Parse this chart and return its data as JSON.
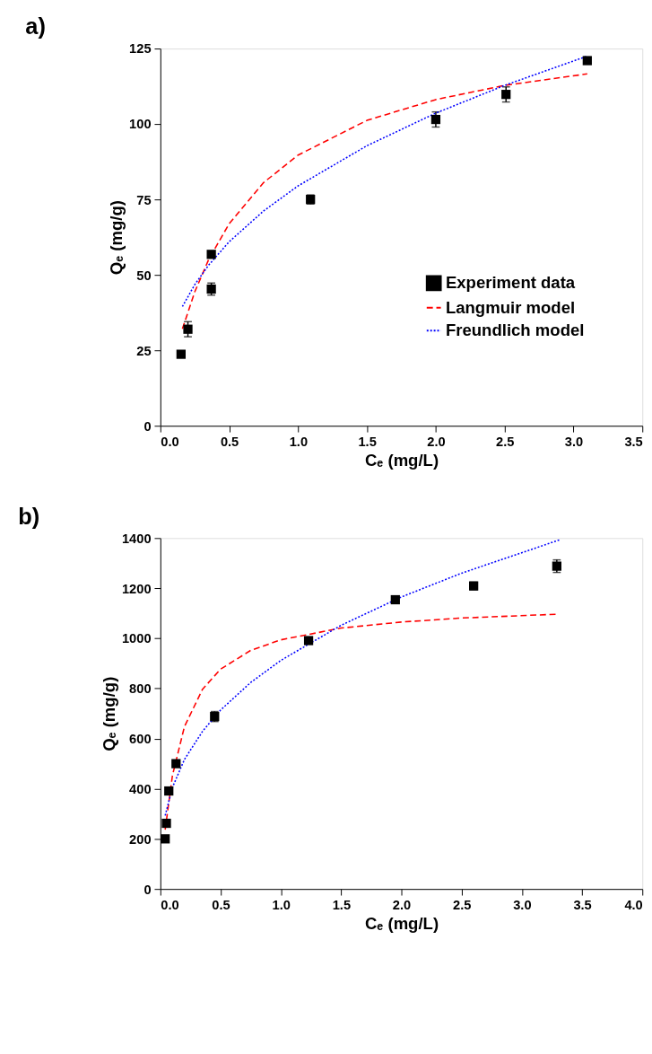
{
  "chart_data": [
    {
      "type": "scatter",
      "title": "a)",
      "xlabel": "Cₑ (mg/L)",
      "ylabel": "Qₑ (mg/g)",
      "x": [
        0.15,
        0.2,
        0.37,
        0.37,
        1.09,
        2.0,
        2.51,
        3.1
      ],
      "series": [
        {
          "name": "Experiment data",
          "color": "#000000",
          "marker": "square",
          "values": [
            23.7,
            32,
            45.3,
            56.8,
            75,
            101.5,
            109.8,
            121
          ],
          "errors": [
            1,
            2.5,
            2,
            1,
            1.5,
            2.5,
            2.5,
            1
          ]
        },
        {
          "name": "Langmuir model",
          "type": "line",
          "color": "#ff0000",
          "line_style": "dashed",
          "x": [
            0.16,
            0.25,
            0.35,
            0.5,
            0.75,
            1.0,
            1.5,
            2.0,
            2.5,
            3.1
          ],
          "values": [
            32.1,
            44.4,
            55.0,
            67.0,
            80.6,
            89.7,
            101.2,
            108.1,
            112.8,
            116.6
          ]
        },
        {
          "name": "Freundlich model",
          "type": "line",
          "color": "#0000ff",
          "line_style": "dotted",
          "x": [
            0.16,
            0.25,
            0.35,
            0.5,
            0.75,
            1.0,
            1.5,
            2.0,
            2.5,
            3.1
          ],
          "values": [
            39.5,
            46.8,
            53.2,
            61.0,
            71.2,
            79.5,
            92.8,
            103.6,
            112.8,
            122.5
          ]
        }
      ],
      "xlim": [
        0,
        3.5
      ],
      "ylim": [
        0,
        125
      ],
      "xticks": [
        {
          "value": 0,
          "label": "0.0"
        },
        {
          "value": 0.5,
          "label": "0.5"
        },
        {
          "value": 1,
          "label": "1.0"
        },
        {
          "value": 1.5,
          "label": "1.5"
        },
        {
          "value": 2,
          "label": "2.0"
        },
        {
          "value": 2.5,
          "label": "2.5"
        },
        {
          "value": 3,
          "label": "3.0"
        },
        {
          "value": 3.5,
          "label": "3.5"
        }
      ],
      "yticks": [
        0,
        25,
        50,
        75,
        100,
        125
      ],
      "grid": false,
      "legend": "bottom right"
    },
    {
      "type": "scatter",
      "title": "b)",
      "xlabel": "Cₑ (mg/L)",
      "ylabel": "Qₑ (mg/g)",
      "x": [
        0.04,
        0.05,
        0.07,
        0.13,
        0.45,
        1.23,
        1.95,
        2.6,
        3.29
      ],
      "series": [
        {
          "name": "Experiment data",
          "color": "#000000",
          "marker": "square",
          "values": [
            200,
            262,
            391,
            500,
            688,
            991,
            1154,
            1209,
            1288
          ],
          "errors": [
            5,
            5,
            5,
            5,
            20,
            10,
            10,
            15,
            25
          ]
        },
        {
          "name": "Langmuir model",
          "type": "line",
          "color": "#ff0000",
          "line_style": "dashed",
          "x": [
            0.04,
            0.1,
            0.2,
            0.35,
            0.5,
            0.75,
            1.0,
            1.5,
            2.0,
            2.5,
            3.28
          ],
          "values": [
            237,
            452,
            648,
            797,
            877,
            952,
            994,
            1041,
            1065,
            1081,
            1096
          ]
        },
        {
          "name": "Freundlich model",
          "type": "line",
          "color": "#0000ff",
          "line_style": "dotted",
          "x": [
            0.04,
            0.1,
            0.2,
            0.35,
            0.5,
            0.75,
            1.0,
            1.5,
            2.0,
            2.5,
            3.32
          ],
          "values": [
            293,
            405,
            517,
            629,
            714,
            824,
            912,
            1052,
            1165,
            1260,
            1394
          ]
        }
      ],
      "xlim": [
        0,
        4
      ],
      "ylim": [
        0,
        1400
      ],
      "xticks": [
        {
          "value": 0,
          "label": "0.0"
        },
        {
          "value": 0.5,
          "label": "0.5"
        },
        {
          "value": 1,
          "label": "1.0"
        },
        {
          "value": 1.5,
          "label": "1.5"
        },
        {
          "value": 2,
          "label": "2.0"
        },
        {
          "value": 2.5,
          "label": "2.5"
        },
        {
          "value": 3,
          "label": "3.0"
        },
        {
          "value": 3.5,
          "label": "3.5"
        },
        {
          "value": 4,
          "label": "4.0"
        }
      ],
      "yticks": [
        0,
        200,
        400,
        600,
        800,
        1000,
        1200,
        1400
      ],
      "grid": false,
      "legend": "bottom right"
    }
  ]
}
